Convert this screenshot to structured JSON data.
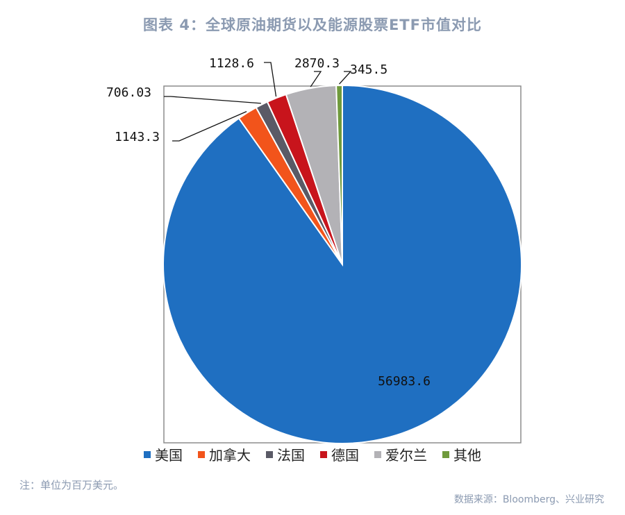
{
  "title": "图表 4：全球原油期货以及能源股票ETF市值对比",
  "note": "注：单位为百万美元。",
  "source": "数据来源：Bloomberg、兴业研究",
  "chart_data": {
    "type": "pie",
    "categories": [
      "美国",
      "加拿大",
      "法国",
      "德国",
      "爱尔兰",
      "其他"
    ],
    "values": [
      56983.6,
      1143.3,
      706.03,
      1128.6,
      2870.3,
      345.5
    ],
    "value_labels": [
      "56983.6",
      "1143.3",
      "706.03",
      "1128.6",
      "2870.3",
      "345.5"
    ],
    "colors": [
      "#1f6fc1",
      "#f2541b",
      "#5a5a66",
      "#c8141c",
      "#b3b2b6",
      "#6f9a3c"
    ],
    "legend_position": "bottom"
  }
}
